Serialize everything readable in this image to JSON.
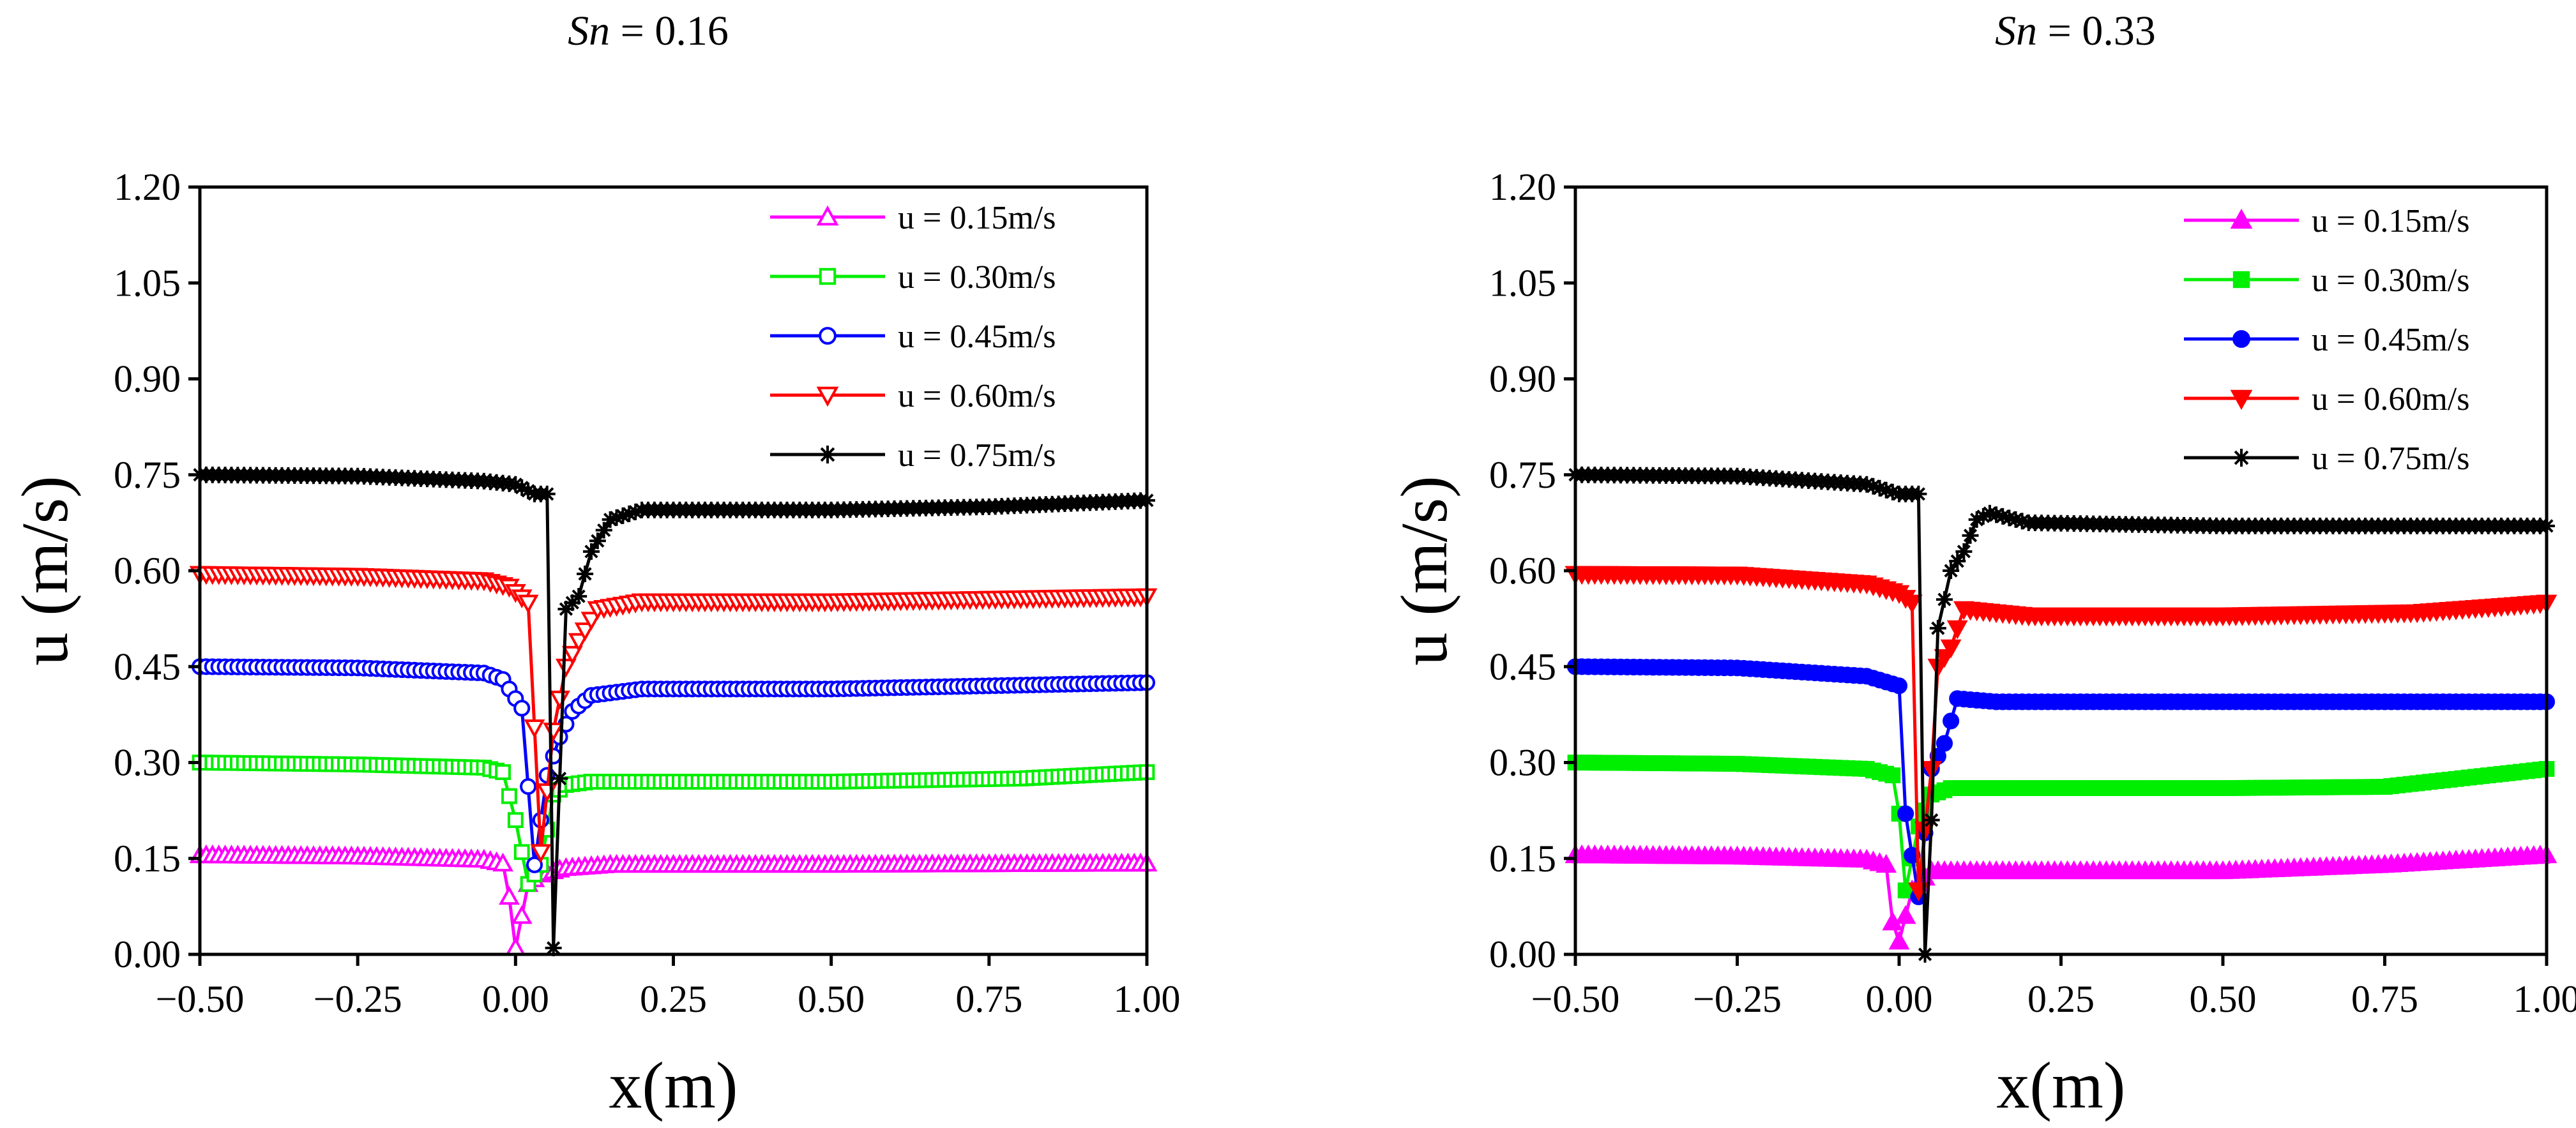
{
  "chart_data": [
    {
      "type": "line",
      "title": {
        "symbol": "Sn",
        "rest": " = 0.16"
      },
      "xlabel": "x(m)",
      "ylabel": "u (m/s)",
      "xlim": [
        -0.5,
        1.0
      ],
      "ylim": [
        0.0,
        1.2
      ],
      "xticks": [
        "−0.50",
        "−0.25",
        "0.00",
        "0.25",
        "0.50",
        "0.75",
        "1.00"
      ],
      "yticks": [
        "0.00",
        "0.15",
        "0.30",
        "0.45",
        "0.60",
        "0.75",
        "0.90",
        "1.05",
        "1.20"
      ],
      "legend_position": "top-right",
      "marker_fill": "open",
      "series": [
        {
          "name": "u = 0.15m/s",
          "color": "#ff00ff",
          "marker": "triangle-up",
          "points": [
            [
              -0.5,
              0.155
            ],
            [
              -0.25,
              0.153
            ],
            [
              -0.05,
              0.148
            ],
            [
              -0.02,
              0.142
            ],
            [
              -0.01,
              0.09
            ],
            [
              0.0,
              0.01
            ],
            [
              0.01,
              0.06
            ],
            [
              0.02,
              0.11
            ],
            [
              0.04,
              0.125
            ],
            [
              0.08,
              0.135
            ],
            [
              0.15,
              0.14
            ],
            [
              0.5,
              0.14
            ],
            [
              1.0,
              0.142
            ]
          ]
        },
        {
          "name": "u = 0.30m/s",
          "color": "#00ee00",
          "marker": "square",
          "points": [
            [
              -0.5,
              0.3
            ],
            [
              -0.25,
              0.297
            ],
            [
              -0.05,
              0.292
            ],
            [
              -0.02,
              0.285
            ],
            [
              0.0,
              0.21
            ],
            [
              0.02,
              0.11
            ],
            [
              0.04,
              0.14
            ],
            [
              0.06,
              0.25
            ],
            [
              0.08,
              0.265
            ],
            [
              0.12,
              0.27
            ],
            [
              0.5,
              0.27
            ],
            [
              0.8,
              0.275
            ],
            [
              1.0,
              0.285
            ]
          ]
        },
        {
          "name": "u = 0.45m/s",
          "color": "#0000ff",
          "marker": "circle",
          "points": [
            [
              -0.5,
              0.45
            ],
            [
              -0.25,
              0.448
            ],
            [
              -0.05,
              0.44
            ],
            [
              -0.02,
              0.43
            ],
            [
              0.01,
              0.385
            ],
            [
              0.03,
              0.14
            ],
            [
              0.05,
              0.28
            ],
            [
              0.07,
              0.34
            ],
            [
              0.09,
              0.38
            ],
            [
              0.12,
              0.405
            ],
            [
              0.2,
              0.415
            ],
            [
              0.5,
              0.415
            ],
            [
              1.0,
              0.425
            ]
          ]
        },
        {
          "name": "u = 0.60m/s",
          "color": "#ff0000",
          "marker": "triangle-down",
          "points": [
            [
              -0.5,
              0.595
            ],
            [
              -0.25,
              0.592
            ],
            [
              -0.05,
              0.585
            ],
            [
              -0.01,
              0.575
            ],
            [
              0.02,
              0.55
            ],
            [
              0.04,
              0.16
            ],
            [
              0.06,
              0.35
            ],
            [
              0.08,
              0.45
            ],
            [
              0.1,
              0.49
            ],
            [
              0.13,
              0.54
            ],
            [
              0.2,
              0.552
            ],
            [
              0.5,
              0.552
            ],
            [
              1.0,
              0.56
            ]
          ]
        },
        {
          "name": "u = 0.75m/s",
          "color": "#000000",
          "marker": "asterisk",
          "points": [
            [
              -0.5,
              0.75
            ],
            [
              -0.25,
              0.748
            ],
            [
              -0.05,
              0.74
            ],
            [
              0.0,
              0.735
            ],
            [
              0.03,
              0.72
            ],
            [
              0.05,
              0.72
            ],
            [
              0.06,
              0.01
            ],
            [
              0.08,
              0.54
            ],
            [
              0.1,
              0.56
            ],
            [
              0.12,
              0.63
            ],
            [
              0.15,
              0.68
            ],
            [
              0.2,
              0.695
            ],
            [
              0.5,
              0.695
            ],
            [
              0.75,
              0.7
            ],
            [
              1.0,
              0.71
            ]
          ]
        }
      ]
    },
    {
      "type": "line",
      "title": {
        "symbol": "Sn",
        "rest": " = 0.33"
      },
      "xlabel": "x(m)",
      "ylabel": "u (m/s)",
      "xlim": [
        -0.5,
        1.0
      ],
      "ylim": [
        0.0,
        1.2
      ],
      "xticks": [
        "−0.50",
        "−0.25",
        "0.00",
        "0.25",
        "0.50",
        "0.75",
        "1.00"
      ],
      "yticks": [
        "0.00",
        "0.15",
        "0.30",
        "0.45",
        "0.60",
        "0.75",
        "0.90",
        "1.05",
        "1.20"
      ],
      "legend_position": "top-right",
      "marker_fill": "filled",
      "series": [
        {
          "name": "u = 0.15m/s",
          "color": "#ff00ff",
          "marker": "triangle-up",
          "points": [
            [
              -0.5,
              0.155
            ],
            [
              -0.25,
              0.153
            ],
            [
              -0.05,
              0.148
            ],
            [
              -0.02,
              0.14
            ],
            [
              -0.01,
              0.05
            ],
            [
              0.0,
              0.02
            ],
            [
              0.02,
              0.1
            ],
            [
              0.05,
              0.13
            ],
            [
              0.1,
              0.13
            ],
            [
              0.5,
              0.13
            ],
            [
              0.75,
              0.14
            ],
            [
              1.0,
              0.155
            ]
          ]
        },
        {
          "name": "u = 0.30m/s",
          "color": "#00ee00",
          "marker": "square",
          "points": [
            [
              -0.5,
              0.3
            ],
            [
              -0.25,
              0.298
            ],
            [
              -0.05,
              0.29
            ],
            [
              -0.01,
              0.28
            ],
            [
              0.0,
              0.22
            ],
            [
              0.01,
              0.1
            ],
            [
              0.03,
              0.2
            ],
            [
              0.05,
              0.25
            ],
            [
              0.08,
              0.26
            ],
            [
              0.5,
              0.26
            ],
            [
              0.75,
              0.262
            ],
            [
              1.0,
              0.29
            ]
          ]
        },
        {
          "name": "u = 0.45m/s",
          "color": "#0000ff",
          "marker": "circle",
          "points": [
            [
              -0.5,
              0.45
            ],
            [
              -0.25,
              0.448
            ],
            [
              -0.05,
              0.435
            ],
            [
              0.0,
              0.42
            ],
            [
              0.01,
              0.22
            ],
            [
              0.03,
              0.09
            ],
            [
              0.05,
              0.29
            ],
            [
              0.07,
              0.33
            ],
            [
              0.09,
              0.4
            ],
            [
              0.15,
              0.395
            ],
            [
              0.5,
              0.395
            ],
            [
              1.0,
              0.395
            ]
          ]
        },
        {
          "name": "u = 0.60m/s",
          "color": "#ff0000",
          "marker": "triangle-down",
          "points": [
            [
              -0.5,
              0.595
            ],
            [
              -0.25,
              0.594
            ],
            [
              -0.05,
              0.58
            ],
            [
              0.0,
              0.565
            ],
            [
              0.02,
              0.55
            ],
            [
              0.03,
              0.1
            ],
            [
              0.05,
              0.29
            ],
            [
              0.06,
              0.45
            ],
            [
              0.08,
              0.48
            ],
            [
              0.1,
              0.54
            ],
            [
              0.2,
              0.53
            ],
            [
              0.5,
              0.53
            ],
            [
              0.8,
              0.535
            ],
            [
              1.0,
              0.55
            ]
          ]
        },
        {
          "name": "u = 0.75m/s",
          "color": "#000000",
          "marker": "asterisk",
          "points": [
            [
              -0.5,
              0.75
            ],
            [
              -0.25,
              0.748
            ],
            [
              -0.05,
              0.735
            ],
            [
              0.0,
              0.72
            ],
            [
              0.03,
              0.72
            ],
            [
              0.04,
              0.0
            ],
            [
              0.05,
              0.21
            ],
            [
              0.06,
              0.51
            ],
            [
              0.08,
              0.6
            ],
            [
              0.1,
              0.63
            ],
            [
              0.12,
              0.68
            ],
            [
              0.14,
              0.69
            ],
            [
              0.2,
              0.675
            ],
            [
              0.5,
              0.67
            ],
            [
              1.0,
              0.67
            ]
          ]
        }
      ]
    }
  ]
}
